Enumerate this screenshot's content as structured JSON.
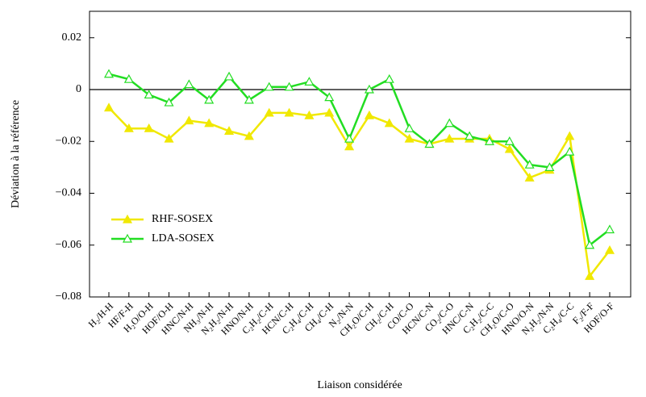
{
  "chart_data": {
    "type": "line",
    "xlabel": "Liaison considérée",
    "ylabel": "Déviation à la référence",
    "categories": [
      "H₂/H-H",
      "HF/F-H",
      "H₂O/O-H",
      "HOF/O-H",
      "HNC/N-H",
      "NH₃/N-H",
      "N₂H₂/N-H",
      "HNO/N-H",
      "C₂H₂/C-H",
      "HCN/C-H",
      "C₂H₄/C-H",
      "CH₄/C-H",
      "N₂/N-N",
      "CH₂O/C-H",
      "CH₂/C-H",
      "CO/C-O",
      "HCN/C-N",
      "CO₂/C-O",
      "HNC/C-N",
      "C₂H₂/C-C",
      "CH₂O/C-O",
      "HNO/O-N",
      "N₂H₂/N-N",
      "C₂H₄/C-C",
      "F₂/F-F",
      "HOF/O-F"
    ],
    "series": [
      {
        "name": "RHF-SOSEX",
        "color": "#f0e800",
        "marker": "filled-triangle",
        "values": [
          -0.007,
          -0.015,
          -0.015,
          -0.019,
          -0.012,
          -0.013,
          -0.016,
          -0.018,
          -0.009,
          -0.009,
          -0.01,
          -0.009,
          -0.022,
          -0.01,
          -0.013,
          -0.019,
          -0.021,
          -0.019,
          -0.019,
          -0.019,
          -0.023,
          -0.034,
          -0.031,
          -0.018,
          -0.072,
          -0.062
        ]
      },
      {
        "name": "LDA-SOSEX",
        "color": "#22dd22",
        "marker": "open-triangle",
        "values": [
          0.006,
          0.004,
          -0.002,
          -0.005,
          0.002,
          -0.004,
          0.005,
          -0.004,
          0.001,
          0.001,
          0.003,
          -0.003,
          -0.019,
          0,
          0.004,
          -0.015,
          -0.021,
          -0.013,
          -0.018,
          -0.02,
          -0.02,
          -0.029,
          -0.03,
          -0.024,
          -0.06,
          -0.054
        ]
      }
    ],
    "ylim": [
      -0.08,
      0.0302
    ],
    "yticks": [
      0.02,
      0,
      {
        "value": -0.02,
        "label": "−0.02"
      },
      {
        "value": -0.04,
        "label": "−0.04"
      },
      {
        "value": -0.06,
        "label": "−0.06"
      },
      {
        "value": -0.08,
        "label": "−0.08"
      }
    ],
    "zero_line": true,
    "legend": "lower left"
  }
}
